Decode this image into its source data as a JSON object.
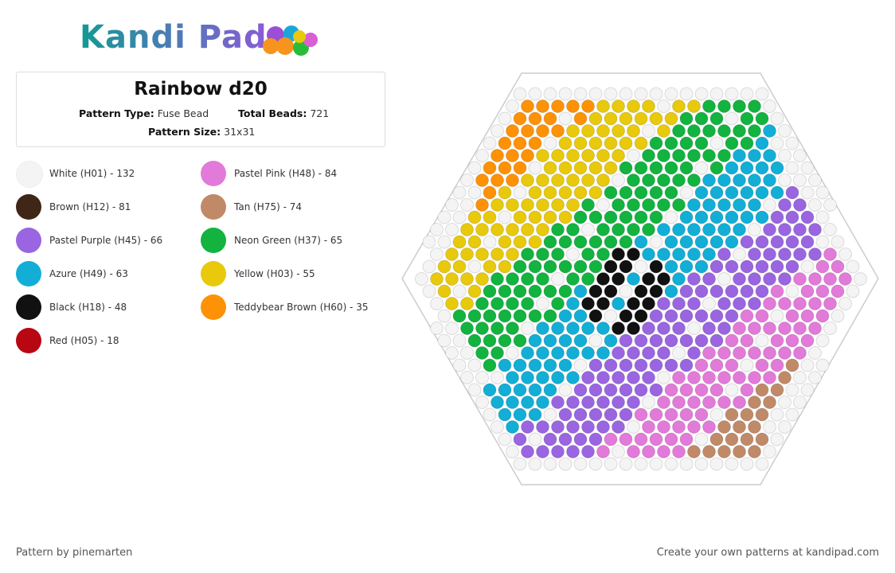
{
  "logo": "Kandi Pad",
  "header": {
    "title": "Rainbow d20",
    "type_label": "Pattern Type:",
    "type_value": "Fuse Bead",
    "total_label": "Total Beads:",
    "total_value": "721",
    "size_label": "Pattern Size:",
    "size_value": "31x31"
  },
  "legend": [
    {
      "label": "White (H01) - 132",
      "color": "#f4f4f4"
    },
    {
      "label": "Pastel Pink (H48) - 84",
      "color": "#e27ad9"
    },
    {
      "label": "Brown (H12) - 81",
      "color": "#3f2616"
    },
    {
      "label": "Tan (H75) - 74",
      "color": "#c08a68"
    },
    {
      "label": "Pastel Purple (H45) - 66",
      "color": "#9a65e0"
    },
    {
      "label": "Neon Green (H37) - 65",
      "color": "#12b33f"
    },
    {
      "label": "Azure (H49) - 63",
      "color": "#12aed6"
    },
    {
      "label": "Yellow (H03) - 55",
      "color": "#e8c90c"
    },
    {
      "label": "Black (H18) - 48",
      "color": "#111111"
    },
    {
      "label": "Teddybear Brown (H60) - 35",
      "color": "#fd9206"
    },
    {
      "label": "Red (H05) - 18",
      "color": "#b80613"
    }
  ],
  "footer": {
    "left": "Pattern by pinemarten",
    "right": "Create your own patterns at kandipad.com"
  }
}
